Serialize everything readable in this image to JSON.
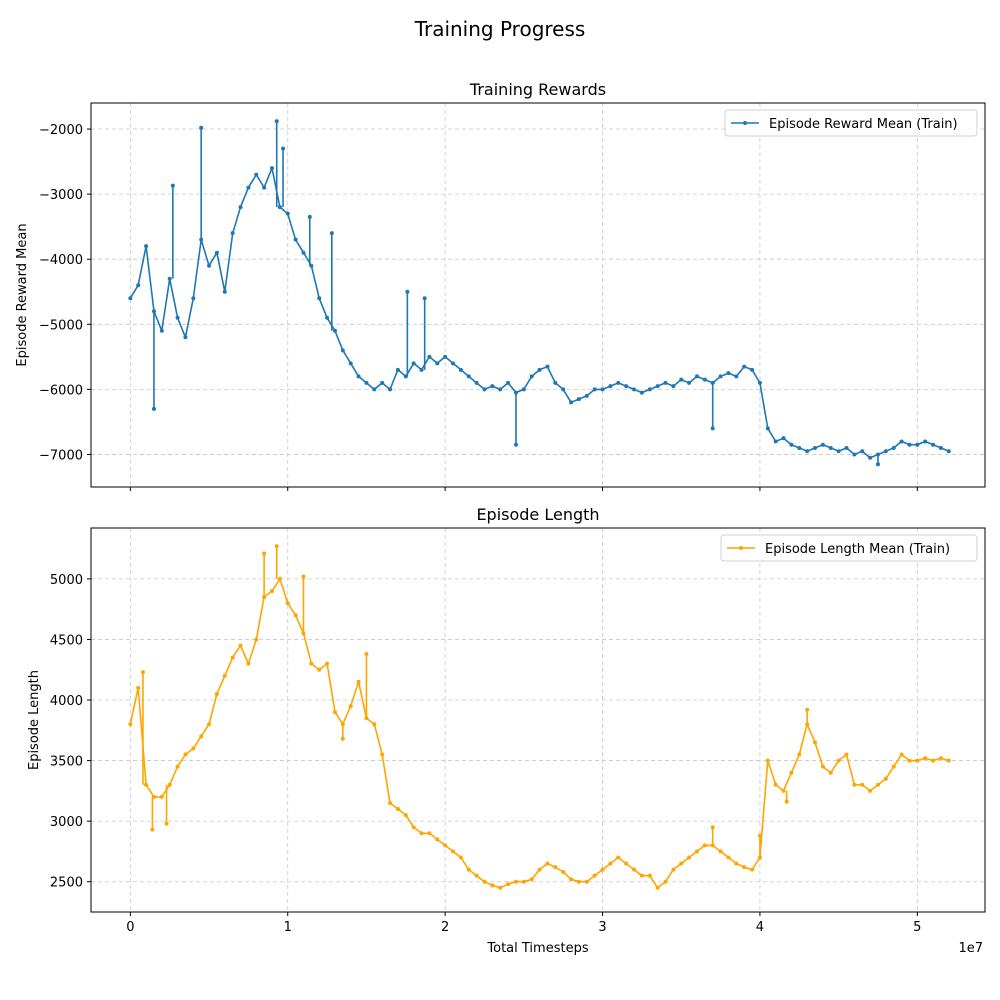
{
  "figure": {
    "suptitle": "Training Progress",
    "x_offset_label": "1e7"
  },
  "chart_data": [
    {
      "type": "line",
      "title": "Training Rewards",
      "xlabel": "",
      "ylabel": "Episode Reward Mean",
      "xlim": [
        -0.25,
        5.43
      ],
      "ylim": [
        -7500,
        -1600
      ],
      "xticks": [
        0,
        1,
        2,
        3,
        4,
        5
      ],
      "xtick_labels": [],
      "yticks": [
        -7000,
        -6000,
        -5000,
        -4000,
        -3000,
        -2000
      ],
      "ytick_labels": [
        "−7000",
        "−6000",
        "−5000",
        "−4000",
        "−3000",
        "−2000"
      ],
      "grid": true,
      "legend_position": "upper right",
      "series": [
        {
          "name": "Episode Reward Mean (Train)",
          "color": "#1f77b4",
          "x": [
            0.0,
            0.05,
            0.1,
            0.15,
            0.2,
            0.25,
            0.3,
            0.35,
            0.4,
            0.45,
            0.5,
            0.55,
            0.6,
            0.65,
            0.7,
            0.75,
            0.8,
            0.85,
            0.9,
            0.95,
            1.0,
            1.05,
            1.1,
            1.15,
            1.2,
            1.25,
            1.3,
            1.35,
            1.4,
            1.45,
            1.5,
            1.55,
            1.6,
            1.65,
            1.7,
            1.75,
            1.8,
            1.85,
            1.9,
            1.95,
            2.0,
            2.05,
            2.1,
            2.15,
            2.2,
            2.25,
            2.3,
            2.35,
            2.4,
            2.45,
            2.5,
            2.55,
            2.6,
            2.65,
            2.7,
            2.75,
            2.8,
            2.85,
            2.9,
            2.95,
            3.0,
            3.05,
            3.1,
            3.15,
            3.2,
            3.25,
            3.3,
            3.35,
            3.4,
            3.45,
            3.5,
            3.55,
            3.6,
            3.65,
            3.7,
            3.75,
            3.8,
            3.85,
            3.9,
            3.95,
            4.0,
            4.05,
            4.1,
            4.15,
            4.2,
            4.25,
            4.3,
            4.35,
            4.4,
            4.45,
            4.5,
            4.55,
            4.6,
            4.65,
            4.7,
            4.75,
            4.8,
            4.85,
            4.9,
            4.95,
            5.0,
            5.05,
            5.1,
            5.15,
            5.2
          ],
          "y": [
            -4600,
            -4400,
            -3800,
            -4800,
            -5100,
            -4300,
            -4900,
            -5200,
            -4600,
            -3700,
            -4100,
            -3900,
            -4500,
            -3600,
            -3200,
            -2900,
            -2700,
            -2900,
            -2600,
            -3200,
            -3300,
            -3700,
            -3900,
            -4100,
            -4600,
            -4900,
            -5100,
            -5400,
            -5600,
            -5800,
            -5900,
            -6000,
            -5900,
            -6000,
            -5700,
            -5800,
            -5600,
            -5700,
            -5500,
            -5600,
            -5500,
            -5600,
            -5700,
            -5800,
            -5900,
            -6000,
            -5950,
            -6000,
            -5900,
            -6050,
            -6000,
            -5800,
            -5700,
            -5650,
            -5900,
            -6000,
            -6200,
            -6150,
            -6100,
            -6000,
            -6000,
            -5950,
            -5900,
            -5950,
            -6000,
            -6050,
            -6000,
            -5950,
            -5900,
            -5950,
            -5850,
            -5900,
            -5800,
            -5850,
            -5900,
            -5800,
            -5750,
            -5800,
            -5650,
            -5700,
            -5900,
            -6600,
            -6800,
            -6750,
            -6850,
            -6900,
            -6950,
            -6900,
            -6850,
            -6900,
            -6950,
            -6900,
            -7000,
            -6950,
            -7050,
            -7000,
            -6950,
            -6900,
            -6800,
            -6850,
            -6850,
            -6800,
            -6850,
            -6900,
            -6950
          ],
          "spikes": [
            {
              "x": 0.45,
              "y": -1980
            },
            {
              "x": 0.93,
              "y": -1880
            },
            {
              "x": 0.97,
              "y": -2300
            },
            {
              "x": 0.27,
              "y": -2870
            },
            {
              "x": 1.14,
              "y": -3350
            },
            {
              "x": 1.28,
              "y": -3600
            },
            {
              "x": 1.76,
              "y": -4500
            },
            {
              "x": 1.87,
              "y": -4600
            },
            {
              "x": 0.15,
              "y": -6300
            },
            {
              "x": 2.45,
              "y": -6850
            },
            {
              "x": 3.7,
              "y": -6600
            },
            {
              "x": 4.75,
              "y": -7150
            }
          ]
        }
      ]
    },
    {
      "type": "line",
      "title": "Episode Length",
      "xlabel": "Total Timesteps",
      "ylabel": "Episode Length",
      "xlim": [
        -0.25,
        5.43
      ],
      "ylim": [
        2250,
        5420
      ],
      "xticks": [
        0,
        1,
        2,
        3,
        4,
        5
      ],
      "xtick_labels": [
        "0",
        "1",
        "2",
        "3",
        "4",
        "5"
      ],
      "yticks": [
        2500,
        3000,
        3500,
        4000,
        4500,
        5000
      ],
      "ytick_labels": [
        "2500",
        "3000",
        "3500",
        "4000",
        "4500",
        "5000"
      ],
      "grid": true,
      "legend_position": "upper right",
      "series": [
        {
          "name": "Episode Length Mean (Train)",
          "color": "#ffa500",
          "x": [
            0.0,
            0.05,
            0.1,
            0.15,
            0.2,
            0.25,
            0.3,
            0.35,
            0.4,
            0.45,
            0.5,
            0.55,
            0.6,
            0.65,
            0.7,
            0.75,
            0.8,
            0.85,
            0.9,
            0.95,
            1.0,
            1.05,
            1.1,
            1.15,
            1.2,
            1.25,
            1.3,
            1.35,
            1.4,
            1.45,
            1.5,
            1.55,
            1.6,
            1.65,
            1.7,
            1.75,
            1.8,
            1.85,
            1.9,
            1.95,
            2.0,
            2.05,
            2.1,
            2.15,
            2.2,
            2.25,
            2.3,
            2.35,
            2.4,
            2.45,
            2.5,
            2.55,
            2.6,
            2.65,
            2.7,
            2.75,
            2.8,
            2.85,
            2.9,
            2.95,
            3.0,
            3.05,
            3.1,
            3.15,
            3.2,
            3.25,
            3.3,
            3.35,
            3.4,
            3.45,
            3.5,
            3.55,
            3.6,
            3.65,
            3.7,
            3.75,
            3.8,
            3.85,
            3.9,
            3.95,
            4.0,
            4.05,
            4.1,
            4.15,
            4.2,
            4.25,
            4.3,
            4.35,
            4.4,
            4.45,
            4.5,
            4.55,
            4.6,
            4.65,
            4.7,
            4.75,
            4.8,
            4.85,
            4.9,
            4.95,
            5.0,
            5.05,
            5.1,
            5.15,
            5.2
          ],
          "y": [
            3800,
            4100,
            3300,
            3200,
            3200,
            3300,
            3450,
            3550,
            3600,
            3700,
            3800,
            4050,
            4200,
            4350,
            4450,
            4300,
            4500,
            4850,
            4900,
            5000,
            4800,
            4700,
            4550,
            4300,
            4250,
            4300,
            3900,
            3800,
            3950,
            4150,
            3850,
            3800,
            3550,
            3150,
            3100,
            3050,
            2950,
            2900,
            2900,
            2850,
            2800,
            2750,
            2700,
            2600,
            2550,
            2500,
            2470,
            2450,
            2480,
            2500,
            2500,
            2520,
            2600,
            2650,
            2620,
            2580,
            2520,
            2500,
            2500,
            2550,
            2600,
            2650,
            2700,
            2650,
            2600,
            2550,
            2550,
            2450,
            2500,
            2600,
            2650,
            2700,
            2750,
            2800,
            2800,
            2750,
            2700,
            2650,
            2620,
            2600,
            2700,
            3500,
            3300,
            3250,
            3400,
            3550,
            3800,
            3650,
            3450,
            3400,
            3500,
            3550,
            3300,
            3300,
            3250,
            3300,
            3350,
            3450,
            3550,
            3500,
            3500,
            3520,
            3500,
            3520,
            3500
          ],
          "spikes": [
            {
              "x": 0.08,
              "y": 4230
            },
            {
              "x": 0.14,
              "y": 2930
            },
            {
              "x": 0.23,
              "y": 2980
            },
            {
              "x": 0.85,
              "y": 5210
            },
            {
              "x": 0.93,
              "y": 5270
            },
            {
              "x": 1.1,
              "y": 5020
            },
            {
              "x": 1.5,
              "y": 4380
            },
            {
              "x": 1.35,
              "y": 3680
            },
            {
              "x": 3.7,
              "y": 2950
            },
            {
              "x": 4.3,
              "y": 3920
            },
            {
              "x": 4.0,
              "y": 2880
            },
            {
              "x": 4.17,
              "y": 3160
            }
          ]
        }
      ]
    }
  ]
}
